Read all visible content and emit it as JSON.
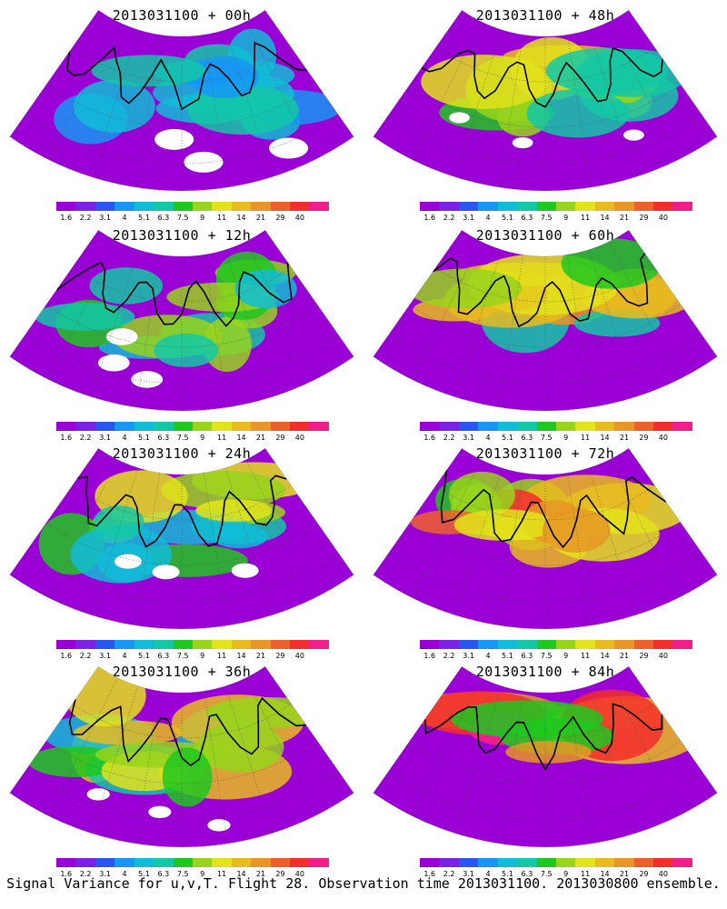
{
  "chart_data": {
    "type": "heatmap",
    "footer": "Signal Variance for u,v,T. Flight 28. Observation time 2013031100. 2013030800 ensemble.",
    "colorbar": {
      "labels": [
        "1.6",
        "2.2",
        "3.1",
        "4",
        "5.1",
        "6.3",
        "7.5",
        "9",
        "11",
        "14",
        "21",
        "29",
        "40"
      ],
      "colors": [
        "#9a00d6",
        "#7a22e6",
        "#2a55f0",
        "#1796f4",
        "#11bcd7",
        "#13c8a6",
        "#1ec81e",
        "#98d41c",
        "#e3e31b",
        "#e9bb1e",
        "#e89626",
        "#ee602b",
        "#f52d2d",
        "#f11e8c"
      ]
    },
    "panels": [
      {
        "title": "2013031100 + 00h",
        "intensity": 0.28
      },
      {
        "title": "2013031100 + 48h",
        "intensity": 0.62
      },
      {
        "title": "2013031100 + 12h",
        "intensity": 0.42
      },
      {
        "title": "2013031100 + 60h",
        "intensity": 0.74
      },
      {
        "title": "2013031100 + 24h",
        "intensity": 0.5
      },
      {
        "title": "2013031100 + 72h",
        "intensity": 0.8
      },
      {
        "title": "2013031100 + 36h",
        "intensity": 0.58
      },
      {
        "title": "2013031100 + 84h",
        "intensity": 0.86
      }
    ]
  }
}
